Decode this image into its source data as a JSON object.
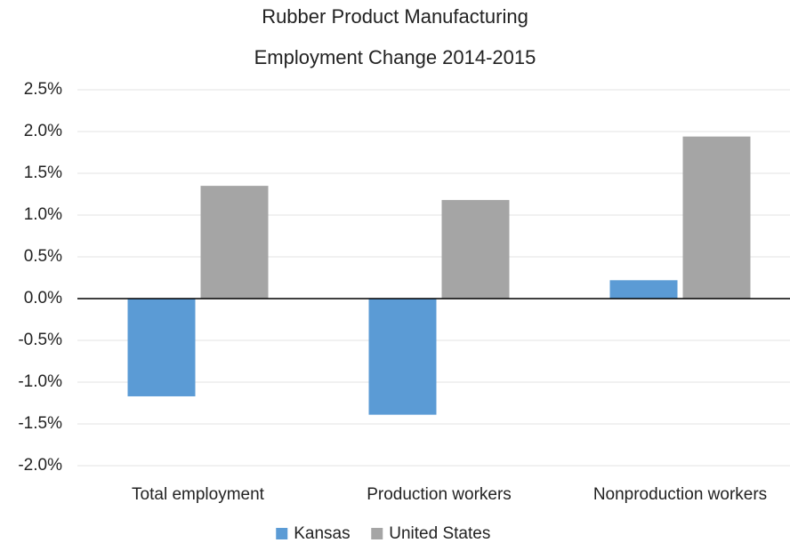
{
  "chart_data": {
    "type": "bar",
    "title": [
      "Rubber Product Manufacturing",
      "Employment Change 2014-2015"
    ],
    "categories": [
      "Total employment",
      "Production workers",
      "Nonproduction workers"
    ],
    "series": [
      {
        "name": "Kansas",
        "color": "#5b9bd5",
        "values": [
          -1.17,
          -1.39,
          0.22
        ]
      },
      {
        "name": "United States",
        "color": "#a5a5a5",
        "values": [
          1.35,
          1.18,
          1.94
        ]
      }
    ],
    "ylim": [
      -2.0,
      2.5
    ],
    "yticks": [
      {
        "value": -2.0,
        "label": "-2.0%"
      },
      {
        "value": -1.5,
        "label": "-1.5%"
      },
      {
        "value": -1.0,
        "label": "-1.0%"
      },
      {
        "value": -0.5,
        "label": "-0.5%"
      },
      {
        "value": 0.0,
        "label": "0.0%"
      },
      {
        "value": 0.5,
        "label": "0.5%"
      },
      {
        "value": 1.0,
        "label": "1.0%"
      },
      {
        "value": 1.5,
        "label": "1.5%"
      },
      {
        "value": 2.0,
        "label": "2.0%"
      },
      {
        "value": 2.5,
        "label": "2.5%"
      }
    ],
    "grid": true,
    "legend": "bottom"
  }
}
